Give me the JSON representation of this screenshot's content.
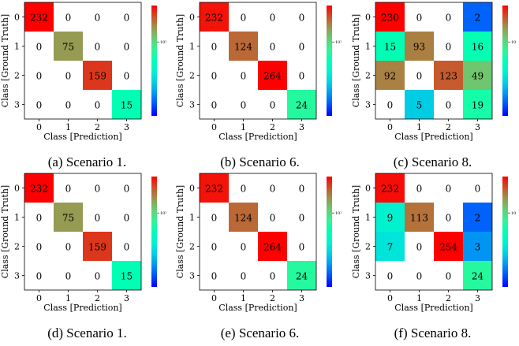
{
  "chart_data": [
    {
      "type": "heatmap",
      "caption": "(a) Scenario 1.",
      "xlabel": "Class [Prediction]",
      "ylabel": "Class [Ground Truth]",
      "x_ticks": [
        "0",
        "1",
        "2",
        "3"
      ],
      "y_ticks": [
        "0",
        "1",
        "2",
        "3"
      ],
      "colorbar_tick": "10²",
      "colormap": "rainbow",
      "matrix": [
        [
          232,
          0,
          0,
          0
        ],
        [
          0,
          75,
          0,
          0
        ],
        [
          0,
          0,
          159,
          0
        ],
        [
          0,
          0,
          0,
          15
        ]
      ]
    },
    {
      "type": "heatmap",
      "caption": "(b) Scenario 6.",
      "xlabel": "Class [Prediction]",
      "ylabel": "Class [Ground Truth]",
      "x_ticks": [
        "0",
        "1",
        "2",
        "3"
      ],
      "y_ticks": [
        "0",
        "1",
        "2",
        "3"
      ],
      "colorbar_tick": "10²",
      "colormap": "rainbow",
      "matrix": [
        [
          232,
          0,
          0,
          0
        ],
        [
          0,
          124,
          0,
          0
        ],
        [
          0,
          0,
          264,
          0
        ],
        [
          0,
          0,
          0,
          24
        ]
      ]
    },
    {
      "type": "heatmap",
      "caption": "(c) Scenario 8.",
      "xlabel": "Class [Prediction]",
      "ylabel": "Class [Ground Truth]",
      "x_ticks": [
        "0",
        "1",
        "2",
        "3"
      ],
      "y_ticks": [
        "0",
        "1",
        "2",
        "3"
      ],
      "colorbar_tick": "10",
      "colormap": "rainbow",
      "matrix": [
        [
          230,
          0,
          0,
          2
        ],
        [
          15,
          93,
          0,
          16
        ],
        [
          92,
          0,
          123,
          49
        ],
        [
          0,
          5,
          0,
          19
        ]
      ]
    },
    {
      "type": "heatmap",
      "caption": "(d) Scenario 1.",
      "xlabel": "Class [Prediction]",
      "ylabel": "Class [Ground Truth]",
      "x_ticks": [
        "0",
        "1",
        "2",
        "3"
      ],
      "y_ticks": [
        "0",
        "1",
        "2",
        "3"
      ],
      "colorbar_tick": "10²",
      "colormap": "rainbow",
      "matrix": [
        [
          232,
          0,
          0,
          0
        ],
        [
          0,
          75,
          0,
          0
        ],
        [
          0,
          0,
          159,
          0
        ],
        [
          0,
          0,
          0,
          15
        ]
      ]
    },
    {
      "type": "heatmap",
      "caption": "(e) Scenario 6.",
      "xlabel": "Class [Prediction]",
      "ylabel": "Class [Ground Truth]",
      "x_ticks": [
        "0",
        "1",
        "2",
        "3"
      ],
      "y_ticks": [
        "0",
        "1",
        "2",
        "3"
      ],
      "colorbar_tick": "10²",
      "colormap": "rainbow",
      "matrix": [
        [
          232,
          0,
          0,
          0
        ],
        [
          0,
          124,
          0,
          0
        ],
        [
          0,
          0,
          264,
          0
        ],
        [
          0,
          0,
          0,
          24
        ]
      ]
    },
    {
      "type": "heatmap",
      "caption": "(f) Scenario 8.",
      "xlabel": "Class [Prediction]",
      "ylabel": "Class [Ground Truth]",
      "x_ticks": [
        "0",
        "1",
        "2",
        "3"
      ],
      "y_ticks": [
        "0",
        "1",
        "2",
        "3"
      ],
      "colorbar_tick": "10",
      "colormap": "rainbow",
      "matrix": [
        [
          232,
          0,
          0,
          0
        ],
        [
          9,
          113,
          0,
          2
        ],
        [
          7,
          0,
          254,
          3
        ],
        [
          0,
          0,
          0,
          24
        ]
      ]
    }
  ]
}
